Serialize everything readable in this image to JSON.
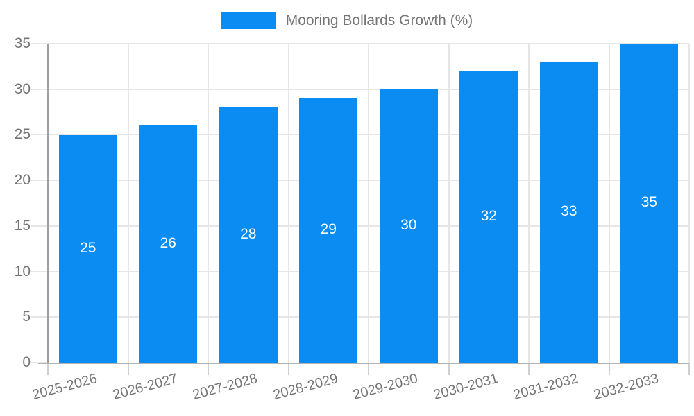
{
  "legend": {
    "label": "Mooring Bollards Growth (%)"
  },
  "chart_data": {
    "type": "bar",
    "title": "Mooring Bollards Growth (%)",
    "categories": [
      "2025-2026",
      "2026-2027",
      "2027-2028",
      "2028-2029",
      "2029-2030",
      "2030-2031",
      "2031-2032",
      "2032-2033"
    ],
    "values": [
      25,
      26,
      28,
      29,
      30,
      32,
      33,
      35
    ],
    "xlabel": "",
    "ylabel": "",
    "ylim": [
      0,
      35
    ],
    "yticks": [
      0,
      5,
      10,
      15,
      20,
      25,
      30,
      35
    ],
    "grid": true,
    "legend_position": "top",
    "x_label_rotation_deg": -15,
    "value_labels_visible": true,
    "colors": {
      "bar": "#0a8cf2",
      "value_label": "#ffffff",
      "axis_text": "#757575",
      "gridline": "#e6e6e6",
      "y_axis_line": "#9e9e9e",
      "x_axis_line": "#b3b3b3",
      "background": "#ffffff"
    }
  }
}
